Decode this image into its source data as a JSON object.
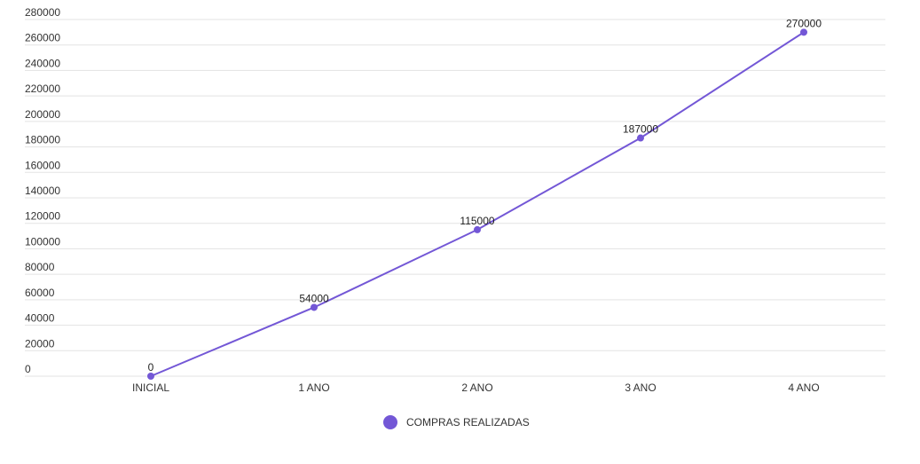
{
  "chart_data": {
    "type": "line",
    "categories": [
      "INICIAL",
      "1 ANO",
      "2 ANO",
      "3 ANO",
      "4 ANO"
    ],
    "series": [
      {
        "name": "COMPRAS REALIZADAS",
        "values": [
          0,
          54000,
          115000,
          187000,
          270000
        ]
      }
    ],
    "data_labels": [
      "0",
      "54000",
      "115000",
      "187000",
      "270000"
    ],
    "ylim": [
      0,
      280000
    ],
    "yticks": [
      0,
      20000,
      40000,
      60000,
      80000,
      100000,
      120000,
      140000,
      160000,
      180000,
      200000,
      220000,
      240000,
      260000,
      280000
    ],
    "ytick_labels": [
      "0",
      "20000",
      "40000",
      "60000",
      "80000",
      "100000",
      "120000",
      "140000",
      "160000",
      "180000",
      "200000",
      "220000",
      "240000",
      "260000",
      "280000"
    ],
    "grid": true,
    "legend_position": "bottom-center",
    "title": "",
    "xlabel": "",
    "ylabel": ""
  },
  "colors": {
    "series": "#7357d6",
    "grid": "#e3e3e3"
  }
}
